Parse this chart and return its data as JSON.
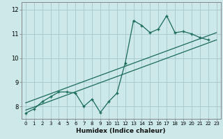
{
  "xlabel": "Humidex (Indice chaleur)",
  "bg_color": "#cce8e8",
  "grid_color": "#aacccc",
  "line_color": "#1a6b5a",
  "xlim": [
    -0.5,
    23.5
  ],
  "ylim": [
    7.5,
    12.3
  ],
  "xticks": [
    0,
    1,
    2,
    3,
    4,
    5,
    6,
    7,
    8,
    9,
    10,
    11,
    12,
    13,
    14,
    15,
    16,
    17,
    18,
    19,
    20,
    21,
    22,
    23
  ],
  "yticks": [
    8,
    9,
    10,
    11,
    12
  ],
  "data_x": [
    0,
    1,
    2,
    3,
    4,
    5,
    6,
    7,
    8,
    9,
    10,
    11,
    12,
    13,
    14,
    15,
    16,
    17,
    18,
    19,
    20,
    21,
    22
  ],
  "data_y": [
    7.72,
    7.9,
    8.2,
    8.4,
    8.6,
    8.6,
    8.55,
    8.0,
    8.3,
    7.75,
    8.2,
    8.55,
    9.8,
    11.55,
    11.35,
    11.05,
    11.2,
    11.75,
    11.05,
    11.1,
    11.0,
    10.85,
    10.75
  ],
  "trend1_x": [
    0,
    23
  ],
  "trend1_y": [
    7.85,
    10.75
  ],
  "trend2_x": [
    0,
    23
  ],
  "trend2_y": [
    8.15,
    11.05
  ]
}
